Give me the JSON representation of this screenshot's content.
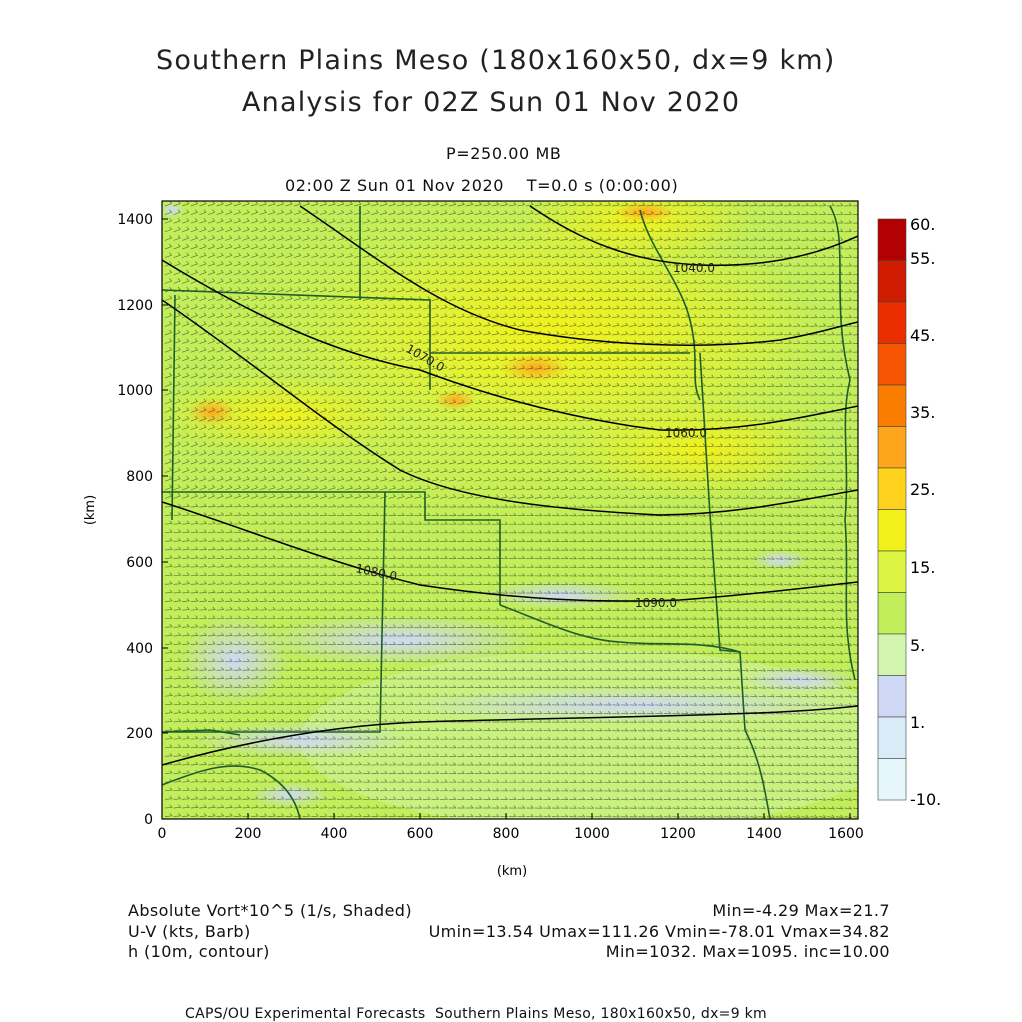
{
  "title": {
    "line1": "Southern Plains Meso (180x160x50, dx=9 km)",
    "line2": "Analysis for 02Z Sun 01 Nov 2020"
  },
  "level_label": "P=250.00 MB",
  "time_label": "02:00 Z Sun 01 Nov 2020    T=0.0 s (0:00:00)",
  "axes": {
    "x_unit": "(km)",
    "y_unit": "(km)",
    "x_ticks": [
      "0",
      "200",
      "400",
      "600",
      "800",
      "1000",
      "1200",
      "1400",
      "1600"
    ],
    "y_ticks": [
      "0",
      "200",
      "400",
      "600",
      "800",
      "1000",
      "1200",
      "1400"
    ]
  },
  "colorbar": {
    "labels": [
      "60.",
      "55.",
      "45.",
      "35.",
      "25.",
      "15.",
      "5.",
      "1.",
      "-10."
    ],
    "colors": [
      "#b30000",
      "#d01c00",
      "#ea2e00",
      "#f55500",
      "#fa7d00",
      "#ffa51c",
      "#ffd21e",
      "#f2f21a",
      "#dcf542",
      "#c1ee5a",
      "#d2f5b0",
      "#cfd9f5",
      "#d9ebf7",
      "#e6f7fb"
    ]
  },
  "contour_labels": [
    "1040.0",
    "1060.0",
    "1070.0",
    "1080.0",
    "1090.0"
  ],
  "footer": {
    "vort_label": "Absolute Vort*10^5 (1/s, Shaded)",
    "vort_range": "Min=-4.29 Max=21.7",
    "wind_label": "U-V (kts, Barb)",
    "wind_range": "Umin=13.54 Umax=111.26 Vmin=-78.01 Vmax=34.82",
    "h_label": "h (10m, contour)",
    "h_range": "Min=1032. Max=1095. inc=10.00"
  },
  "credit": "CAPS/OU Experimental Forecasts  Southern Plains Meso, 180x160x50, dx=9 km"
}
